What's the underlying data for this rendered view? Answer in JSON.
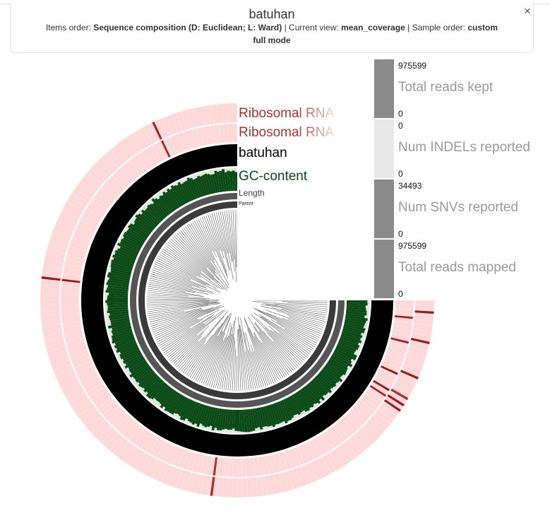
{
  "header": {
    "title": "batuhan",
    "items_order_label": "Items order:",
    "items_order_value": "Sequence composition (D: Euclidean; L: Ward)",
    "current_view_label": "Current view:",
    "current_view_value": "mean_coverage",
    "sample_order_label": "Sample order:",
    "sample_order_value": "custom",
    "mode_text": "full mode",
    "close_label": "×"
  },
  "layers": [
    {
      "name": "Ribosomal RNA",
      "color": "#9b1c1c",
      "bg": "#ffd9d9"
    },
    {
      "name": "Ribosomal RNA",
      "color": "#9b1c1c",
      "bg": "#ffd9d9"
    },
    {
      "name": "batuhan",
      "color": "#000000"
    },
    {
      "name": "GC-content",
      "color": "#0a4a16"
    },
    {
      "name": "Length",
      "color": "#444444"
    },
    {
      "name": "Parent",
      "color": "#222222"
    }
  ],
  "sample_bars": [
    {
      "name": "Total reads kept",
      "max": "975599",
      "min": "0",
      "fill_fraction": 1.0,
      "color": "#8a8a8a"
    },
    {
      "name": "Num INDELs reported",
      "max": "0",
      "min": "0",
      "fill_fraction": 0.0,
      "color": "#e6e6e6"
    },
    {
      "name": "Num SNVs reported",
      "max": "34493",
      "min": "0",
      "fill_fraction": 1.0,
      "color": "#8a8a8a"
    },
    {
      "name": "Total reads mapped",
      "max": "975599",
      "min": "0",
      "fill_fraction": 1.0,
      "color": "#8a8a8a"
    }
  ],
  "colors": {
    "rrna_bg": "#ffd9d9",
    "rrna_mark": "#9b1c1c",
    "coverage": "#000000",
    "gc": "#0a4a16",
    "gc_bg": "#dfeadf",
    "length": "#555555",
    "tree": "#777777"
  }
}
